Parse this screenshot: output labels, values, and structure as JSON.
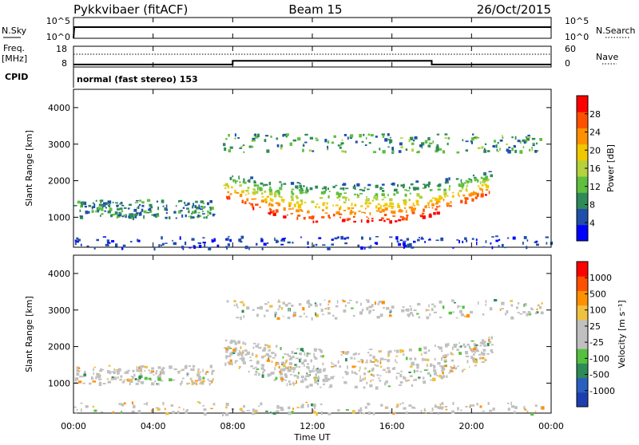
{
  "header": {
    "station": "Pykkvibaer (fitACF)",
    "beam": "Beam 15",
    "date": "26/Oct/2015"
  },
  "nsky_panel": {
    "left_label": "N.Sky",
    "left_ticks": [
      "10^5",
      "10^0"
    ],
    "right_label": "N.Search",
    "right_ticks": [
      "10^5",
      "10^0"
    ]
  },
  "freq_panel": {
    "left_label_1": "Freq.",
    "left_label_2": "[MHz]",
    "left_ticks": [
      "18",
      "8"
    ],
    "right_label": "Nave",
    "right_ticks": [
      "60",
      "0"
    ],
    "freq_steps": [
      {
        "t": 0,
        "mhz": 9.2
      },
      {
        "t": 8.0,
        "mhz": 9.2
      },
      {
        "t": 8.0,
        "mhz": 11.0
      },
      {
        "t": 18.0,
        "mhz": 11.0
      },
      {
        "t": 18.0,
        "mhz": 9.2
      },
      {
        "t": 24.0,
        "mhz": 9.2
      }
    ]
  },
  "cpid": {
    "label": "CPID",
    "text": "normal (fast stereo) 153"
  },
  "power_panel": {
    "ylabel": "Slant Range [km]",
    "yticks": [
      "4000",
      "3000",
      "2000",
      "1000"
    ],
    "colorbar_label": "Power [dB]",
    "colorbar_ticks": [
      "28",
      "24",
      "20",
      "16",
      "12",
      "8",
      "4"
    ]
  },
  "velocity_panel": {
    "ylabel": "Slant Range [km]",
    "yticks": [
      "4000",
      "3000",
      "2000",
      "1000"
    ],
    "colorbar_label": "Velocity [m s⁻¹]",
    "colorbar_ticks": [
      "1000",
      "500",
      "100",
      "25",
      "-25",
      "-100",
      "-500",
      "-1000"
    ]
  },
  "xaxis": {
    "label": "Time UT",
    "ticks": [
      "00:00",
      "04:00",
      "08:00",
      "12:00",
      "16:00",
      "20:00",
      "00:00"
    ]
  },
  "colors": {
    "power_scale": [
      "#0000ff",
      "#1f4fa8",
      "#2e8b57",
      "#5fbf3f",
      "#b4d23c",
      "#f0c800",
      "#ff9000",
      "#ff5000",
      "#ff0000"
    ],
    "velocity_scale": [
      "#1b3fae",
      "#2a5fbf",
      "#2e8b57",
      "#55c040",
      "#c0c0c0",
      "#c0c0c0",
      "#f0c040",
      "#ff9000",
      "#ff5000",
      "#ff0000"
    ]
  },
  "chart_data": {
    "type": "heatmap",
    "title": "Pykkvibaer (fitACF)",
    "xlabel": "Time UT",
    "ylabel": "Slant Range [km]",
    "xlim_hours": [
      0,
      24
    ],
    "ylim_km": [
      180,
      4500
    ],
    "power_range_db": [
      0,
      30
    ],
    "velocity_range_ms": [
      -1000,
      1000
    ],
    "echo_regions": [
      {
        "name_hint": "main band",
        "t_start": 7.5,
        "t_end": 21.0,
        "range_km": [
          900,
          2400
        ],
        "peak_power_db": 28
      },
      {
        "name_hint": "far band",
        "t_start": 7.5,
        "t_end": 23.5,
        "range_km": [
          2800,
          3300
        ],
        "peak_power_db": 14
      },
      {
        "name_hint": "early echoes",
        "t_start": 0.0,
        "t_end": 7.0,
        "range_km": [
          1000,
          1500
        ],
        "peak_power_db": 12
      },
      {
        "name_hint": "near range",
        "t_start": 0.0,
        "t_end": 24.0,
        "range_km": [
          180,
          500
        ],
        "peak_power_db": 6
      }
    ]
  }
}
